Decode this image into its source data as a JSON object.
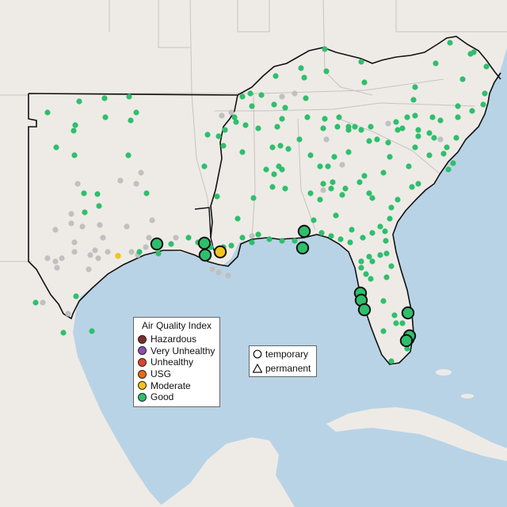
{
  "map": {
    "colors": {
      "water": "#b9d3e6",
      "land": "#eeebe7",
      "border": "#111111",
      "state_line": "#b8b8b8",
      "no_data": "#c0c0c0"
    },
    "aqi_legend": {
      "title": "Air Quality Index",
      "items": [
        {
          "label": "Hazardous",
          "color": "#7e2d2d"
        },
        {
          "label": "Very Unhealthy",
          "color": "#8e4fb0"
        },
        {
          "label": "Unhealthy",
          "color": "#e0452c"
        },
        {
          "label": "USG",
          "color": "#e86b16"
        },
        {
          "label": "Moderate",
          "color": "#f3c41a"
        },
        {
          "label": "Good",
          "color": "#2fbf6c"
        }
      ]
    },
    "site_type_legend": {
      "items": [
        {
          "label": "temporary",
          "icon": "circle-icon"
        },
        {
          "label": "permanent",
          "icon": "triangle-icon"
        }
      ]
    },
    "monitors": {
      "small_good_count": 182,
      "small_no_data_count": 42,
      "small_moderate_count": 1,
      "large_good_count": 13,
      "large_moderate_count": 1
    }
  }
}
